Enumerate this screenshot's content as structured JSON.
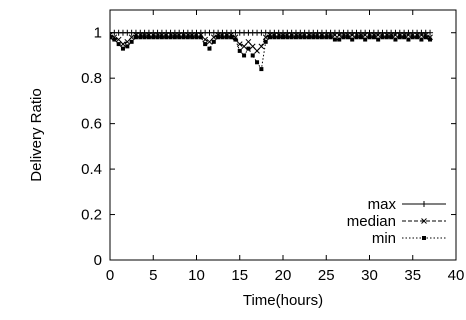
{
  "chart_data": {
    "type": "line",
    "xlabel": "Time(hours)",
    "ylabel": "Delivery Ratio",
    "xlim": [
      0,
      40
    ],
    "ylim": [
      0,
      1.1
    ],
    "x_ticks": [
      "0",
      "5",
      "10",
      "15",
      "20",
      "25",
      "30",
      "35",
      "40"
    ],
    "y_ticks": [
      "0",
      "0.2",
      "0.4",
      "0.6",
      "0.8",
      "1"
    ],
    "grid": false,
    "legend_position": "bottom-right",
    "series": [
      {
        "name": "max",
        "style": "solid",
        "marker": "plus",
        "x": [
          0,
          0.5,
          1,
          1.5,
          2,
          2.5,
          3,
          3.5,
          4,
          4.5,
          5,
          5.5,
          6,
          6.5,
          7,
          7.5,
          8,
          8.5,
          9,
          9.5,
          10,
          10.5,
          11,
          11.5,
          12,
          12.5,
          13,
          13.5,
          14,
          14.5,
          15,
          15.5,
          16,
          16.5,
          17,
          17.5,
          18,
          18.5,
          19,
          19.5,
          20,
          20.5,
          21,
          21.5,
          22,
          22.5,
          23,
          23.5,
          24,
          24.5,
          25,
          25.5,
          26,
          26.5,
          27,
          27.5,
          28,
          28.5,
          29,
          29.5,
          30,
          30.5,
          31,
          31.5,
          32,
          32.5,
          33,
          33.5,
          34,
          34.5,
          35,
          35.5,
          36,
          36.5,
          37
        ],
        "y": [
          1,
          1,
          1,
          1,
          1,
          1,
          1,
          1,
          1,
          1,
          1,
          1,
          1,
          1,
          1,
          1,
          1,
          1,
          1,
          1,
          1,
          1,
          1,
          1,
          1,
          1,
          1,
          1,
          1,
          1,
          1,
          1,
          1,
          1,
          1,
          1,
          1,
          1,
          1,
          1,
          1,
          1,
          1,
          1,
          1,
          1,
          1,
          1,
          1,
          1,
          1,
          1,
          1,
          1,
          1,
          1,
          1,
          1,
          1,
          1,
          1,
          1,
          1,
          1,
          1,
          1,
          1,
          1,
          1,
          1,
          1,
          1,
          1,
          1,
          1
        ]
      },
      {
        "name": "median",
        "style": "dashed",
        "marker": "x",
        "x": [
          0,
          0.5,
          1,
          1.5,
          2,
          2.5,
          3,
          3.5,
          4,
          4.5,
          5,
          5.5,
          6,
          6.5,
          7,
          7.5,
          8,
          8.5,
          9,
          9.5,
          10,
          10.5,
          11,
          11.5,
          12,
          12.5,
          13,
          13.5,
          14,
          14.5,
          15,
          15.5,
          16,
          16.5,
          17,
          17.5,
          18,
          18.5,
          19,
          19.5,
          20,
          20.5,
          21,
          21.5,
          22,
          22.5,
          23,
          23.5,
          24,
          24.5,
          25,
          25.5,
          26,
          26.5,
          27,
          27.5,
          28,
          28.5,
          29,
          29.5,
          30,
          30.5,
          31,
          31.5,
          32,
          32.5,
          33,
          33.5,
          34,
          34.5,
          35,
          35.5,
          36,
          36.5,
          37
        ],
        "y": [
          0.99,
          0.98,
          0.97,
          0.95,
          0.96,
          0.98,
          0.99,
          0.99,
          0.99,
          0.99,
          0.99,
          0.99,
          0.99,
          0.99,
          0.99,
          0.99,
          0.99,
          0.99,
          0.99,
          0.99,
          0.99,
          0.99,
          0.97,
          0.96,
          0.98,
          0.99,
          0.99,
          0.99,
          0.99,
          0.98,
          0.95,
          0.94,
          0.96,
          0.94,
          0.92,
          0.94,
          0.98,
          0.99,
          0.99,
          0.99,
          0.99,
          0.99,
          0.99,
          0.99,
          0.99,
          0.99,
          0.99,
          0.99,
          0.99,
          0.99,
          0.99,
          0.99,
          0.99,
          0.99,
          0.99,
          0.99,
          0.99,
          0.99,
          0.99,
          0.99,
          0.99,
          0.99,
          0.99,
          0.99,
          0.99,
          0.99,
          0.99,
          0.99,
          0.99,
          0.99,
          0.99,
          0.99,
          0.99,
          0.99,
          0.98
        ]
      },
      {
        "name": "min",
        "style": "dotted",
        "marker": "filled-square",
        "x": [
          0,
          0.5,
          1,
          1.5,
          2,
          2.5,
          3,
          3.5,
          4,
          4.5,
          5,
          5.5,
          6,
          6.5,
          7,
          7.5,
          8,
          8.5,
          9,
          9.5,
          10,
          10.5,
          11,
          11.5,
          12,
          12.5,
          13,
          13.5,
          14,
          14.5,
          15,
          15.5,
          16,
          16.5,
          17,
          17.5,
          18,
          18.5,
          19,
          19.5,
          20,
          20.5,
          21,
          21.5,
          22,
          22.5,
          23,
          23.5,
          24,
          24.5,
          25,
          25.5,
          26,
          26.5,
          27,
          27.5,
          28,
          28.5,
          29,
          29.5,
          30,
          30.5,
          31,
          31.5,
          32,
          32.5,
          33,
          33.5,
          34,
          34.5,
          35,
          35.5,
          36,
          36.5,
          37
        ],
        "y": [
          0.98,
          0.97,
          0.95,
          0.93,
          0.94,
          0.96,
          0.98,
          0.98,
          0.98,
          0.98,
          0.98,
          0.98,
          0.98,
          0.98,
          0.98,
          0.98,
          0.98,
          0.98,
          0.98,
          0.98,
          0.98,
          0.98,
          0.95,
          0.93,
          0.96,
          0.98,
          0.98,
          0.98,
          0.98,
          0.97,
          0.92,
          0.9,
          0.93,
          0.9,
          0.87,
          0.84,
          0.96,
          0.98,
          0.98,
          0.98,
          0.98,
          0.98,
          0.98,
          0.98,
          0.98,
          0.98,
          0.98,
          0.98,
          0.98,
          0.98,
          0.98,
          0.98,
          0.97,
          0.97,
          0.98,
          0.98,
          0.97,
          0.98,
          0.98,
          0.97,
          0.98,
          0.98,
          0.97,
          0.98,
          0.98,
          0.98,
          0.97,
          0.98,
          0.98,
          0.97,
          0.98,
          0.98,
          0.97,
          0.98,
          0.97
        ]
      }
    ]
  }
}
